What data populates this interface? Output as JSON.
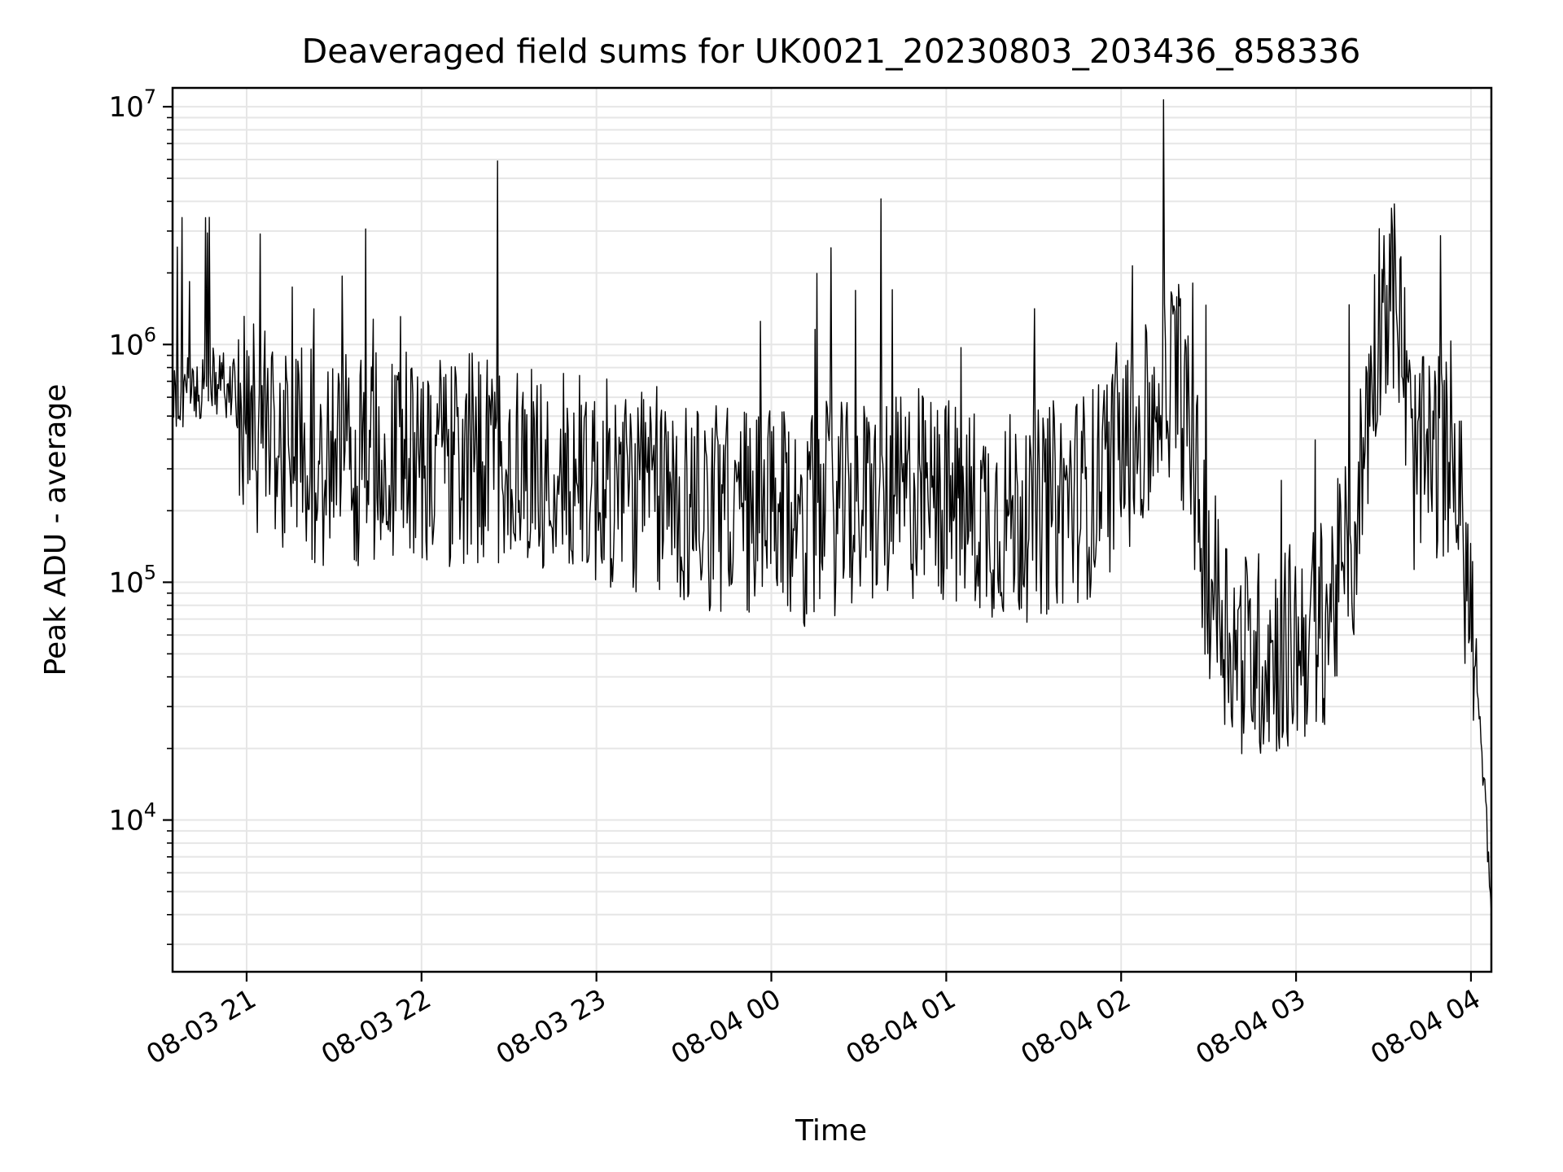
{
  "chart_data": {
    "type": "line",
    "title": "Deaveraged field sums for UK0021_20230803_203436_858336",
    "xlabel": "Time",
    "ylabel": "Peak ADU - average",
    "yscale": "log",
    "ylim": [
      2300,
      12000000
    ],
    "xlim": [
      "2023-08-03 20:34:36",
      "2023-08-04 04:07:00"
    ],
    "x_ticks": [
      "08-03 21",
      "08-03 22",
      "08-03 23",
      "08-04 00",
      "08-04 01",
      "08-04 02",
      "08-04 03",
      "08-04 04"
    ],
    "y_ticks": [
      {
        "value": 10000,
        "base": "10",
        "exp": "4"
      },
      {
        "value": 100000,
        "base": "10",
        "exp": "5"
      },
      {
        "value": 1000000,
        "base": "10",
        "exp": "6"
      },
      {
        "value": 10000000,
        "base": "10",
        "exp": "7"
      }
    ],
    "grid": true,
    "line_color": "#000000",
    "grid_color": "#e6e6e6",
    "series": [
      {
        "x": [
          "20:35",
          "20:45",
          "20:50",
          "20:55",
          "21:00",
          "21:10",
          "21:20",
          "21:30",
          "21:40",
          "21:50",
          "22:00",
          "22:10",
          "22:20",
          "22:30",
          "22:40",
          "22:50",
          "23:00",
          "23:10",
          "23:20",
          "23:30",
          "23:40",
          "23:50",
          "00:00",
          "00:10",
          "00:20",
          "00:30",
          "00:40",
          "00:50",
          "01:00",
          "01:10",
          "01:20",
          "01:30",
          "01:40",
          "01:50",
          "02:00",
          "02:10",
          "02:15",
          "02:20",
          "02:30",
          "02:40",
          "02:50",
          "03:00",
          "03:10",
          "03:20",
          "03:25",
          "03:30",
          "03:35",
          "03:40",
          "03:50",
          "03:55",
          "04:00",
          "04:05",
          "04:07"
        ],
        "y": [
          600000,
          650000,
          700000,
          650000,
          450000,
          400000,
          350000,
          320000,
          330000,
          350000,
          330000,
          320000,
          330000,
          320000,
          300000,
          280000,
          260000,
          250000,
          240000,
          220000,
          210000,
          200000,
          190000,
          180000,
          200000,
          210000,
          220000,
          230000,
          220000,
          200000,
          190000,
          190000,
          220000,
          240000,
          350000,
          450000,
          800000,
          700000,
          110000,
          50000,
          50000,
          55000,
          70000,
          150000,
          600000,
          1800000,
          1500000,
          300000,
          350000,
          280000,
          70000,
          12000,
          3500
        ]
      }
    ]
  }
}
